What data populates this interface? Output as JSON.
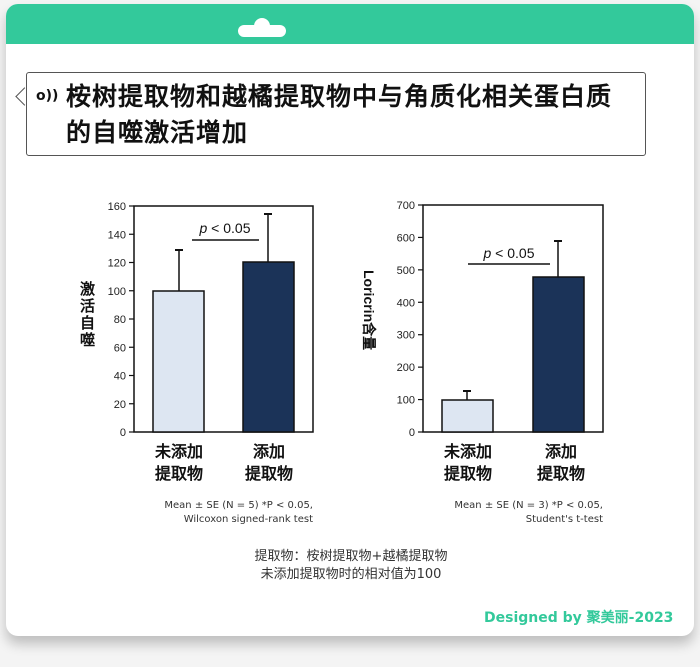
{
  "header": {
    "color": "#33c99b"
  },
  "title": {
    "icon": "speaker-waves-icon",
    "text": "桉树提取物和越橘提取物中与角质化相关蛋白质的自噬激活增加"
  },
  "chart_data": [
    {
      "type": "bar",
      "title": "",
      "ylabel": "激活自噬",
      "xlabel": "",
      "categories": [
        "未添加提取物",
        "添加提取物"
      ],
      "values": [
        100,
        120
      ],
      "error_upper": [
        129,
        154
      ],
      "ylim": [
        0,
        160
      ],
      "yticks": [
        0,
        20,
        40,
        60,
        80,
        100,
        120,
        140,
        160
      ],
      "colors": [
        "#dde6f2",
        "#1b3358"
      ],
      "annotation": "p < 0.05",
      "note_line1": "Mean ± SE (N = 5)  *P < 0.05,",
      "note_line2": "Wilcoxon signed-rank test",
      "grid": false
    },
    {
      "type": "bar",
      "title": "",
      "ylabel": "Loricrin含量",
      "xlabel": "",
      "categories": [
        "未添加提取物",
        "添加提取物"
      ],
      "values": [
        100,
        477
      ],
      "error_upper": [
        127,
        590
      ],
      "ylim": [
        0,
        700
      ],
      "yticks": [
        0,
        100,
        200,
        300,
        400,
        500,
        600,
        700
      ],
      "colors": [
        "#dde6f2",
        "#1b3358"
      ],
      "annotation": "p < 0.05",
      "note_line1": "Mean ± SE (N = 3)  *P < 0.05,",
      "note_line2": "Student's t-test",
      "grid": false
    }
  ],
  "labels": {
    "cat1_line1": "未添加",
    "cat1_line2": "提取物",
    "cat2_line1": "添加",
    "cat2_line2": "提取物",
    "left_ylabel_chars": [
      "激",
      "活",
      "自",
      "噬"
    ],
    "right_ylabel": "Loricrin含量"
  },
  "caption": {
    "line1": "提取物：桉树提取物+越橘提取物",
    "line2": "未添加提取物时的相对值为100"
  },
  "footer": {
    "text": "Designed by 聚美丽-2023"
  }
}
